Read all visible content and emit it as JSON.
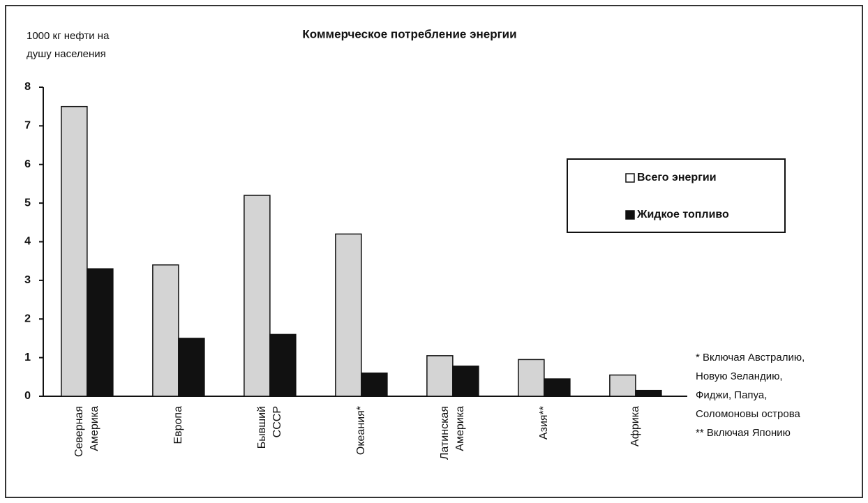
{
  "chart_data": {
    "type": "bar",
    "title": "Коммерческое потребление энергии",
    "y_label": [
      "1000 кг нефти на",
      "душу населения"
    ],
    "categories": [
      "Северная Америка",
      "Европа",
      "Бывший СССР",
      "Океания*",
      "Латинская Америка",
      "Азия**",
      "Африка"
    ],
    "series": [
      {
        "name": "Всего энергии",
        "color": "#d4d4d4",
        "values": [
          7.5,
          3.4,
          5.2,
          4.2,
          1.05,
          0.95,
          0.55
        ]
      },
      {
        "name": "Жидкое топливо",
        "color": "#111111",
        "values": [
          3.3,
          1.5,
          1.6,
          0.6,
          0.78,
          0.45,
          0.15
        ]
      }
    ],
    "ylim": [
      0,
      8
    ],
    "yticks": [
      0,
      1,
      2,
      3,
      4,
      5,
      6,
      7,
      8
    ],
    "grid": false,
    "legend": "right",
    "annotations": [
      "* Включая Австралию,",
      "Новую Зеландию,",
      "Фиджи, Папуа,",
      "Соломоновы острова",
      "** Включая Японию"
    ]
  }
}
